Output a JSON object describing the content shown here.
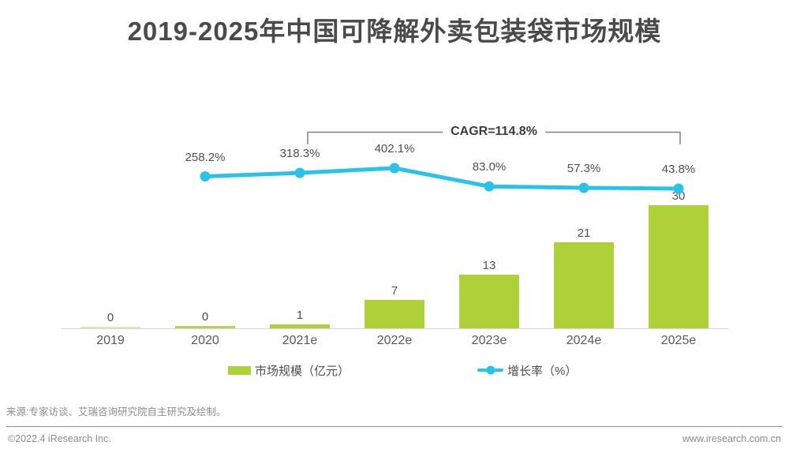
{
  "title": "2019-2025年中国可降解外卖包装袋市场规模",
  "chart_data": {
    "type": "bar",
    "combo": "bar+line",
    "title": "2019-2025年中国可降解外卖包装袋市场规模",
    "categories": [
      "2019",
      "2020",
      "2021e",
      "2022e",
      "2023e",
      "2024e",
      "2025e"
    ],
    "series": [
      {
        "name": "市场规模（亿元）",
        "type": "bar",
        "values": [
          0,
          0,
          1,
          7,
          13,
          21,
          30
        ],
        "value_labels": [
          "0",
          "0",
          "1",
          "7",
          "13",
          "21",
          "30"
        ],
        "color": "#aed038"
      },
      {
        "name": "增长率（%）",
        "type": "line",
        "values": [
          null,
          258.2,
          318.3,
          402.1,
          83.0,
          57.3,
          43.8
        ],
        "value_labels": [
          null,
          "258.2%",
          "318.3%",
          "402.1%",
          "83.0%",
          "57.3%",
          "43.8%"
        ],
        "color": "#29c2ec"
      }
    ],
    "annotation": "CAGR=114.8%",
    "annotation_span": [
      "2021e",
      "2025e"
    ],
    "xlabel": "",
    "ylabel": "",
    "bar_ylim": [
      0,
      32
    ],
    "axes_hidden": true,
    "grid": false,
    "legend_position": "bottom"
  },
  "legend": {
    "bar_label": "市场规模（亿元）",
    "line_label": "增长率（%）"
  },
  "source_note": "来源:专家访谈、艾瑞咨询研究院自主研究及绘制。",
  "footer": {
    "copyright": "©2022.4 iResearch Inc.",
    "website": "www.iresearch.com.cn"
  },
  "colors": {
    "bar": "#aed038",
    "bar_2019_zero": "#dcebb0",
    "bar_2020_zero": "#b5d54e",
    "line": "#29c2ec",
    "title_text": "#4a4a4a",
    "label_text": "#4f4f4f",
    "axis_label_text": "#595959",
    "axis_line": "#d6d6d6",
    "bracket": "#808080",
    "muted_text": "#8c8c8c"
  }
}
